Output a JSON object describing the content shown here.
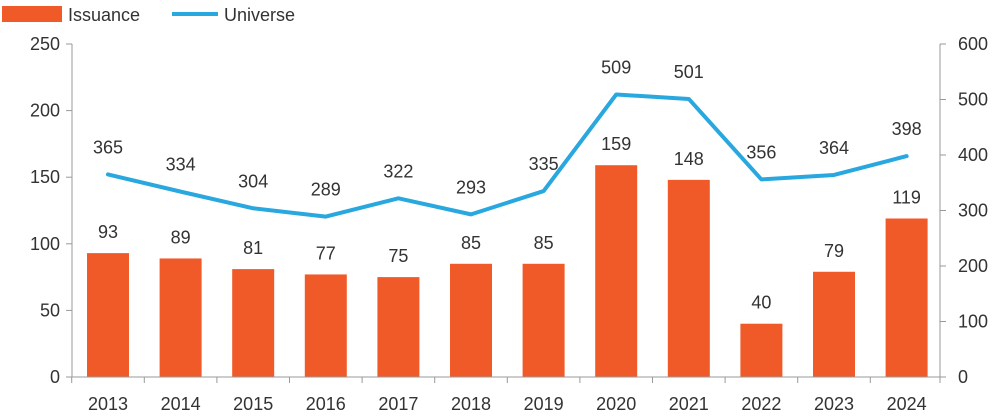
{
  "chart_data": {
    "type": "bar+line",
    "categories": [
      "2013",
      "2014",
      "2015",
      "2016",
      "2017",
      "2018",
      "2019",
      "2020",
      "2021",
      "2022",
      "2023",
      "2024"
    ],
    "series": [
      {
        "name": "Issuance",
        "type": "bar",
        "axis": "left",
        "color": "#F05A28",
        "values": [
          93,
          89,
          81,
          77,
          75,
          85,
          85,
          159,
          148,
          40,
          79,
          119
        ]
      },
      {
        "name": "Universe",
        "type": "line",
        "axis": "right",
        "color": "#29A7DF",
        "values": [
          365,
          334,
          304,
          289,
          322,
          293,
          335,
          509,
          501,
          356,
          364,
          398
        ]
      }
    ],
    "y_left": {
      "min": 0,
      "max": 250,
      "ticks": [
        0,
        50,
        100,
        150,
        200,
        250
      ]
    },
    "y_right": {
      "min": 0,
      "max": 600,
      "ticks": [
        0,
        100,
        200,
        300,
        400,
        500,
        600
      ]
    },
    "legend_position": "top-left",
    "grid": false
  }
}
